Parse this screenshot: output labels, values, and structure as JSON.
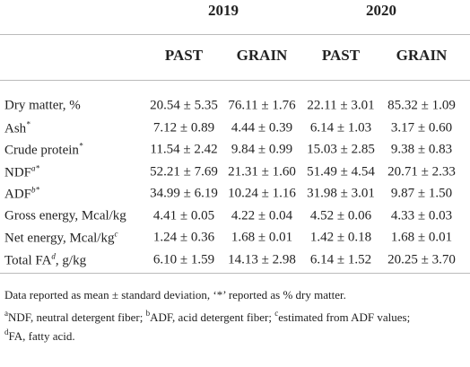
{
  "header": {
    "years": [
      "2019",
      "2020"
    ],
    "columns": [
      "PAST",
      "GRAIN",
      "PAST",
      "GRAIN"
    ]
  },
  "table": {
    "rows": [
      {
        "label": {
          "text": "Dry matter, %"
        },
        "cells": [
          "20.54 ± 5.35",
          "76.11 ± 1.76",
          "22.11 ± 3.01",
          "85.32 ± 1.09"
        ]
      },
      {
        "label": {
          "text": "Ash",
          "sup": "*"
        },
        "cells": [
          "7.12 ± 0.89",
          "4.44 ± 0.39",
          "6.14 ± 1.03",
          "3.17 ± 0.60"
        ]
      },
      {
        "label": {
          "text": "Crude protein",
          "sup": "*"
        },
        "cells": [
          "11.54 ± 2.42",
          "9.84 ± 0.99",
          "15.03 ± 2.85",
          "9.38 ± 0.83"
        ]
      },
      {
        "label": {
          "text": "NDF",
          "sup": "a*"
        },
        "cells": [
          "52.21 ± 7.69",
          "21.31 ± 1.60",
          "51.49 ± 4.54",
          "20.71 ± 2.33"
        ]
      },
      {
        "label": {
          "text": "ADF",
          "sup": "b*"
        },
        "cells": [
          "34.99 ± 6.19",
          "10.24 ± 1.16",
          "31.98 ± 3.01",
          "9.87 ± 1.50"
        ]
      },
      {
        "label": {
          "text": "Gross energy, Mcal/kg"
        },
        "cells": [
          "4.41 ± 0.05",
          "4.22 ± 0.04",
          "4.52 ± 0.06",
          "4.33 ± 0.03"
        ]
      },
      {
        "label": {
          "text": "Net energy, Mcal/kg",
          "sup": "c"
        },
        "cells": [
          "1.24 ± 0.36",
          "1.68 ± 0.01",
          "1.42 ± 0.18",
          "1.68 ± 0.01"
        ]
      },
      {
        "label": {
          "text": "Total FA",
          "sup": "d",
          "suffix": ", g/kg"
        },
        "cells": [
          "6.10 ± 1.59",
          "14.13 ± 2.98",
          "6.14 ± 1.52",
          "20.25 ± 3.70"
        ]
      }
    ]
  },
  "footnotes": [
    {
      "text": "Data reported as mean ± standard deviation, ‘*’ reported as % dry matter."
    },
    {
      "parts": [
        {
          "mark": "a",
          "text": "NDF, neutral detergent fiber; "
        },
        {
          "mark": "b",
          "text": "ADF, acid detergent fiber; "
        },
        {
          "mark": "c",
          "text": "estimated from ADF values;"
        }
      ]
    },
    {
      "parts": [
        {
          "mark": "d",
          "text": "FA, fatty acid."
        }
      ]
    }
  ]
}
